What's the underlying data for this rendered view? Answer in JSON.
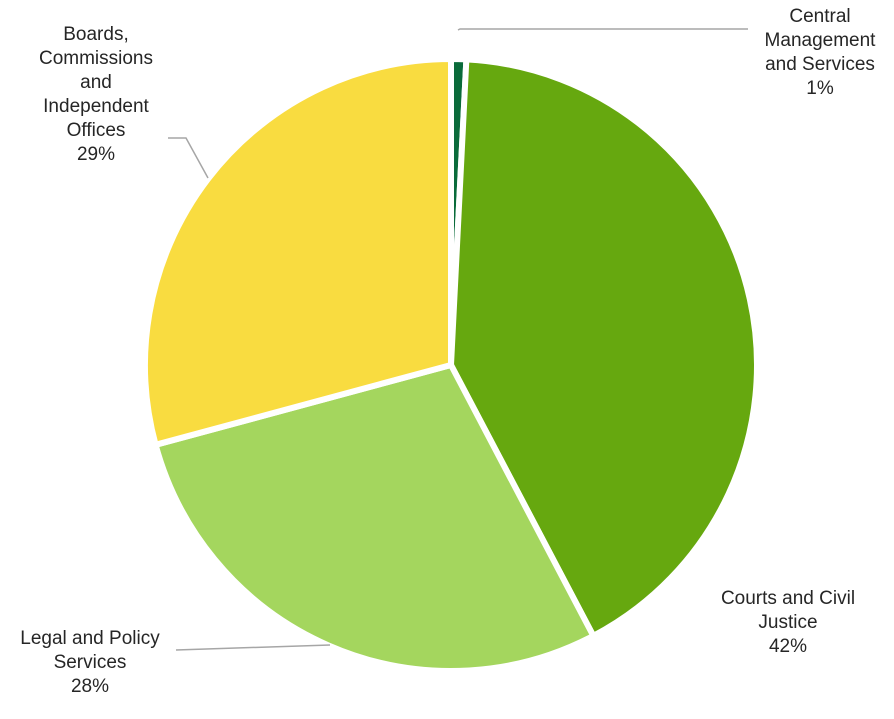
{
  "chart_data": {
    "type": "pie",
    "title": "",
    "slices": [
      {
        "label_lines": [
          "Central",
          "Management",
          "and Services"
        ],
        "percent_label": "1%",
        "value": 0.8,
        "color": "#0a6b3a"
      },
      {
        "label_lines": [
          "Courts and Civil",
          "Justice"
        ],
        "percent_label": "42%",
        "value": 41.5,
        "color": "#66a80f"
      },
      {
        "label_lines": [
          "Legal and Policy",
          "Services"
        ],
        "percent_label": "28%",
        "value": 28.5,
        "color": "#a4d65e"
      },
      {
        "label_lines": [
          "Boards,",
          "Commissions",
          "and",
          "Independent",
          "Offices"
        ],
        "percent_label": "29%",
        "value": 29.2,
        "color": "#f9dc40"
      }
    ]
  }
}
